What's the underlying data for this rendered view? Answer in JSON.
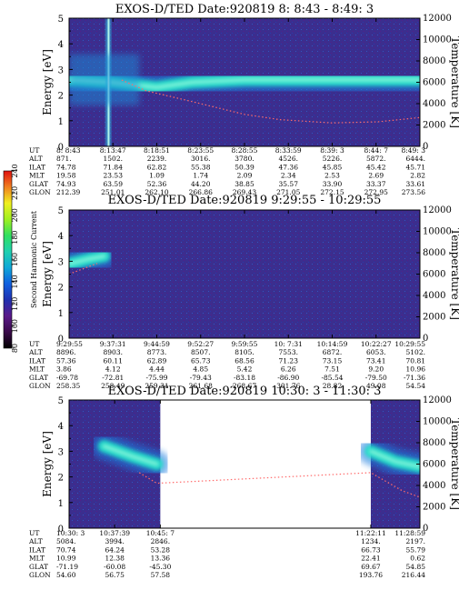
{
  "colorbar": {
    "label": "Second Harmonic Current",
    "ticks": [
      "80",
      "100",
      "120",
      "140",
      "160",
      "180",
      "200",
      "220",
      "240"
    ],
    "colors": [
      "#000000",
      "#3a0a4a",
      "#5a1a8a",
      "#2030b0",
      "#1060e0",
      "#10a8d8",
      "#20d0b0",
      "#30e060",
      "#a0f020",
      "#f0f020",
      "#f08020",
      "#e01010"
    ]
  },
  "panel_colors": {
    "background": "#3b2e8e",
    "band": "#20dcc8",
    "band_core": "#a0ffe0",
    "temperature_trace": "#ff6a6a"
  },
  "chart_data": [
    {
      "type": "heatmap",
      "title": "EXOS-D/TED   Date:920819  8: 8:43 - 8:49: 3",
      "ylabel": "Energy [eV]",
      "y2label": "Temperature [K]",
      "ylim": [
        0,
        5
      ],
      "y2lim": [
        0,
        12000
      ],
      "yticks": [
        "0",
        "1",
        "2",
        "3",
        "4",
        "5"
      ],
      "y2ticks": [
        "0",
        "2000",
        "4000",
        "6000",
        "8000",
        "10000",
        "12000"
      ],
      "orbit_rows": [
        "UT",
        "ALT",
        "ILAT",
        "MLT",
        "GLAT",
        "GLON"
      ],
      "orbit_columns": [
        [
          "8: 8:43",
          "871.",
          "74.78",
          "19.58",
          "74.93",
          "212.39"
        ],
        [
          "8:13:47",
          "1502.",
          "71.84",
          "23.53",
          "63.59",
          "251.01"
        ],
        [
          "8:18:51",
          "2239.",
          "62.82",
          "1.09",
          "52.36",
          "262.10"
        ],
        [
          "8:23:55",
          "3016.",
          "55.38",
          "1.74",
          "44.20",
          "266.86"
        ],
        [
          "8:28:55",
          "3780.",
          "50.39",
          "2.09",
          "38.85",
          "269.43"
        ],
        [
          "8:33:59",
          "4526.",
          "47.36",
          "2.34",
          "35.57",
          "271.05"
        ],
        [
          "8:39: 3",
          "5226.",
          "45.85",
          "2.53",
          "33.90",
          "272.15"
        ],
        [
          "8:44: 7",
          "5872.",
          "45.42",
          "2.69",
          "33.37",
          "272.95"
        ],
        [
          "8:49: 3",
          "6444.",
          "45.71",
          "2.82",
          "33.61",
          "273.56"
        ]
      ],
      "data_coverage": [
        [
          0,
          1
        ]
      ],
      "band_energy_ev": [
        [
          0,
          2.6
        ],
        [
          0.12,
          2.5
        ],
        [
          0.25,
          2.3
        ],
        [
          0.35,
          2.5
        ],
        [
          0.5,
          2.6
        ],
        [
          1,
          2.6
        ]
      ],
      "temperature_k": [
        [
          0.15,
          6200
        ],
        [
          0.22,
          5200
        ],
        [
          0.35,
          4200
        ],
        [
          0.5,
          3000
        ],
        [
          0.6,
          2500
        ],
        [
          0.75,
          2200
        ],
        [
          0.88,
          2300
        ],
        [
          1,
          2700
        ]
      ]
    },
    {
      "type": "heatmap",
      "title": "EXOS-D/TED   Date:920819  9:29:55 - 10:29:55",
      "ylabel": "Energy [eV]",
      "y2label": "Temperature [K]",
      "ylim": [
        0,
        5
      ],
      "y2lim": [
        0,
        12000
      ],
      "yticks": [
        "0",
        "1",
        "2",
        "3",
        "4",
        "5"
      ],
      "y2ticks": [
        "0",
        "2000",
        "4000",
        "6000",
        "8000",
        "10000",
        "12000"
      ],
      "orbit_rows": [
        "UT",
        "ALT",
        "ILAT",
        "MLT",
        "GLAT",
        "GLON"
      ],
      "orbit_columns": [
        [
          "9:29:55",
          "8896.",
          "57.36",
          "3.86",
          "-69.78",
          "258.35"
        ],
        [
          "9:37:31",
          "8903.",
          "60.11",
          "4.12",
          "-72.81",
          "258.49"
        ],
        [
          "9:44:59",
          "8773.",
          "62.89",
          "4.44",
          "-75.99",
          "259.31"
        ],
        [
          "9:52:27",
          "8507.",
          "65.73",
          "4.85",
          "-79.43",
          "261.68"
        ],
        [
          "9:59:55",
          "8105.",
          "68.56",
          "5.42",
          "-83.18",
          "268.67"
        ],
        [
          "10: 7:31",
          "7553.",
          "71.23",
          "6.26",
          "-86.90",
          "301.76"
        ],
        [
          "10:14:59",
          "6872.",
          "73.15",
          "7.51",
          "-85.54",
          "28.82"
        ],
        [
          "10:22:27",
          "6053.",
          "73.41",
          "9.20",
          "-79.50",
          "49.08"
        ],
        [
          "10:29:55",
          "5102.",
          "70.81",
          "10.96",
          "-71.36",
          "54.54"
        ]
      ],
      "data_coverage": [
        [
          0,
          1
        ]
      ],
      "band_energy_ev": [
        [
          0,
          2.9
        ],
        [
          0.06,
          3.1
        ],
        [
          0.1,
          3.2
        ]
      ],
      "temperature_k": [
        [
          0,
          6000
        ],
        [
          0.08,
          7000
        ]
      ]
    },
    {
      "type": "heatmap",
      "title": "EXOS-D/TED   Date:920819  10:30: 3 - 11:30: 3",
      "ylabel": "Energy [eV]",
      "y2label": "Temperature [K]",
      "ylim": [
        0,
        5
      ],
      "y2lim": [
        0,
        12000
      ],
      "yticks": [
        "0",
        "1",
        "2",
        "3",
        "4",
        "5"
      ],
      "y2ticks": [
        "0",
        "2000",
        "4000",
        "6000",
        "8000",
        "10000",
        "12000"
      ],
      "orbit_rows": [
        "UT",
        "ALT",
        "ILAT",
        "MLT",
        "GLAT",
        "GLON"
      ],
      "orbit_columns": [
        [
          "10:30: 3",
          "5084.",
          "70.74",
          "10.99",
          "-71.19",
          "54.60"
        ],
        [
          "10:37:39",
          "3994.",
          "64.24",
          "12.38",
          "-60.08",
          "56.75"
        ],
        [
          "10:45: 7",
          "2846.",
          "53.28",
          "13.36",
          "-45.30",
          "57.58"
        ],
        [
          "11:22:11",
          "1234.",
          "66.73",
          "22.41",
          "69.67",
          "193.76"
        ],
        [
          "11:28:59",
          "2197.",
          "55.79",
          "0.62",
          "54.85",
          "216.44"
        ]
      ],
      "data_coverage": [
        [
          0,
          0.26
        ],
        [
          0.86,
          1
        ]
      ],
      "band_energy_ev": [
        [
          0.1,
          3.2
        ],
        [
          0.18,
          2.8
        ],
        [
          0.25,
          2.5
        ],
        [
          0.86,
          3.0
        ],
        [
          0.93,
          2.6
        ],
        [
          1,
          2.4
        ]
      ],
      "temperature_k": [
        [
          0.2,
          5200
        ],
        [
          0.25,
          4200
        ],
        [
          0.86,
          5200
        ],
        [
          0.95,
          3500
        ],
        [
          1,
          2900
        ]
      ]
    }
  ]
}
